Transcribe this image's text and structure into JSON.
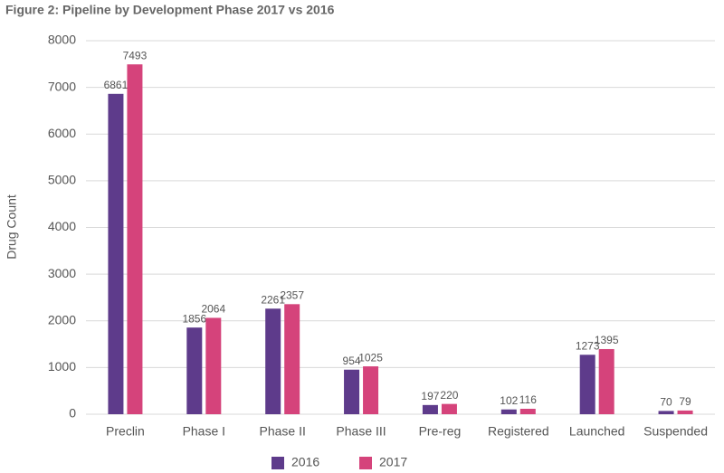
{
  "chart_data": {
    "type": "bar",
    "title": "Figure 2: Pipeline by Development Phase 2017 vs 2016",
    "y_label": "Drug Count",
    "categories": [
      "Preclin",
      "Phase I",
      "Phase II",
      "Phase III",
      "Pre-reg",
      "Registered",
      "Launched",
      "Suspended"
    ],
    "series": [
      {
        "name": "2016",
        "color": "#5e3b8b",
        "values": [
          6861,
          1856,
          2261,
          954,
          197,
          102,
          1273,
          70
        ]
      },
      {
        "name": "2017",
        "color": "#d5437b",
        "values": [
          7493,
          2064,
          2357,
          1025,
          220,
          116,
          1395,
          79
        ]
      }
    ],
    "ylim": [
      0,
      8000
    ],
    "yticks": [
      0,
      1000,
      2000,
      3000,
      4000,
      5000,
      6000,
      7000,
      8000
    ],
    "grid": true,
    "legend": "bottom"
  }
}
